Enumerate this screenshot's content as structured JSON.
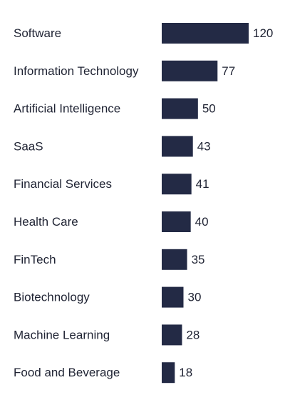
{
  "chart_data": {
    "type": "bar",
    "orientation": "horizontal",
    "categories": [
      "Software",
      "Information Technology",
      "Artificial Intelligence",
      "SaaS",
      "Financial Services",
      "Health Care",
      "FinTech",
      "Biotechnology",
      "Machine Learning",
      "Food and Beverage"
    ],
    "values": [
      120,
      77,
      50,
      43,
      41,
      40,
      35,
      30,
      28,
      18
    ],
    "title": "",
    "xlabel": "",
    "ylabel": "",
    "grid": false,
    "legend": "none",
    "data_labels": true,
    "bar_color": "#232a45"
  }
}
